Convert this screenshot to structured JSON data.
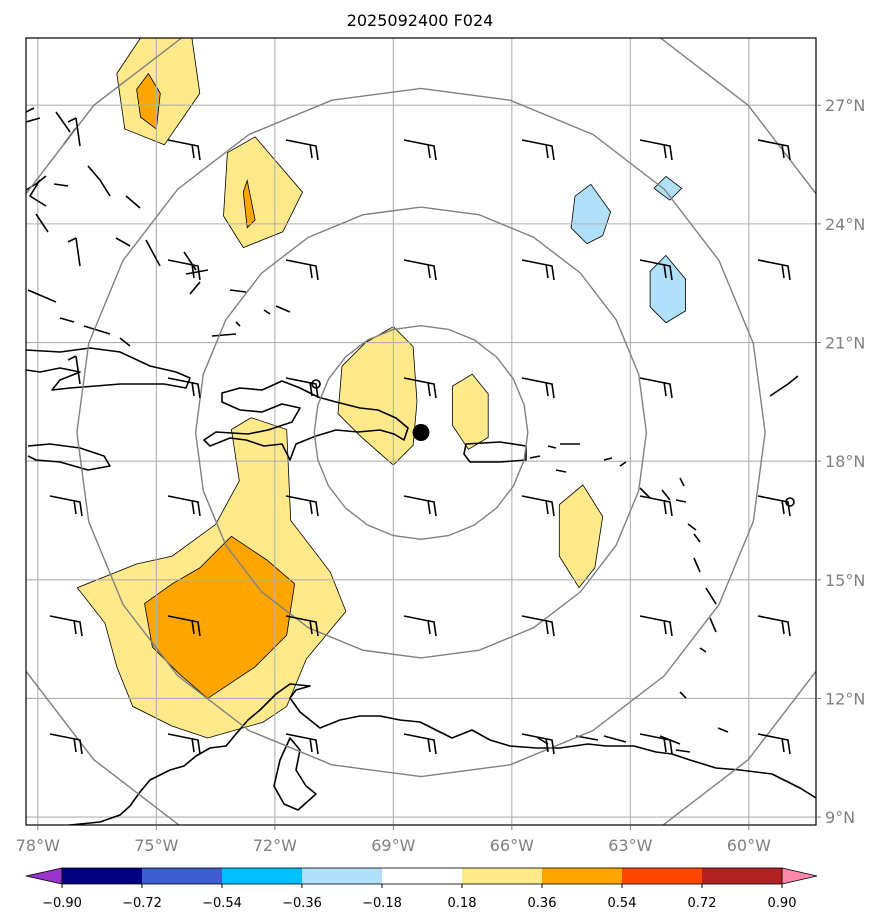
{
  "title": "2025092400 F024",
  "map": {
    "lon_range": [
      -78.3,
      -58.3
    ],
    "lat_range": [
      8.8,
      28.7
    ],
    "lon_ticks": [
      {
        "value": -78,
        "label": "78°W"
      },
      {
        "value": -75,
        "label": "75°W"
      },
      {
        "value": -72,
        "label": "72°W"
      },
      {
        "value": -69,
        "label": "69°W"
      },
      {
        "value": -66,
        "label": "66°W"
      },
      {
        "value": -63,
        "label": "63°W"
      },
      {
        "value": -60,
        "label": "60°W"
      }
    ],
    "lat_ticks": [
      {
        "value": 9,
        "label": "9°N"
      },
      {
        "value": 12,
        "label": "12°N"
      },
      {
        "value": 15,
        "label": "15°N"
      },
      {
        "value": 18,
        "label": "18°N"
      },
      {
        "value": 21,
        "label": "21°N"
      },
      {
        "value": 24,
        "label": "24°N"
      },
      {
        "value": 27,
        "label": "27°N"
      }
    ],
    "center_marker": {
      "lon": -68.3,
      "lat": 18.75
    },
    "range_rings_deg_lat": [
      2.7,
      5.7,
      8.7,
      11.7
    ]
  },
  "colorbar": {
    "colors": [
      "#9933cc",
      "#000080",
      "#3c5ed2",
      "#00bfff",
      "#b0e0fa",
      "#ffffff",
      "#ffe98a",
      "#ffa500",
      "#ff4500",
      "#b22222",
      "#ff88aa"
    ],
    "labels": [
      "−0.90",
      "−0.72",
      "−0.54",
      "−0.36",
      "−0.18",
      "0.18",
      "0.36",
      "0.54",
      "0.72",
      "0.90"
    ]
  },
  "chart_data": {
    "type": "heatmap",
    "title": "2025092400 F024",
    "levels": [
      -0.9,
      -0.72,
      -0.54,
      -0.36,
      -0.18,
      0.18,
      0.36,
      0.54,
      0.72,
      0.9
    ],
    "regions": [
      {
        "level": 0.18,
        "points": [
          [
            -75.4,
            28.7
          ],
          [
            -74.1,
            28.7
          ],
          [
            -73.9,
            27.3
          ],
          [
            -74.8,
            26.0
          ],
          [
            -75.8,
            26.4
          ],
          [
            -76.0,
            27.8
          ]
        ]
      },
      {
        "level": 0.36,
        "points": [
          [
            -75.2,
            27.8
          ],
          [
            -74.9,
            27.3
          ],
          [
            -75.0,
            26.4
          ],
          [
            -75.4,
            26.7
          ],
          [
            -75.5,
            27.4
          ]
        ]
      },
      {
        "level": 0.18,
        "points": [
          [
            -72.5,
            26.2
          ],
          [
            -71.3,
            24.8
          ],
          [
            -71.8,
            23.8
          ],
          [
            -72.8,
            23.4
          ],
          [
            -73.3,
            24.2
          ],
          [
            -73.2,
            25.8
          ]
        ]
      },
      {
        "level": 0.36,
        "points": [
          [
            -72.7,
            25.1
          ],
          [
            -72.5,
            24.1
          ],
          [
            -72.7,
            23.9
          ],
          [
            -72.8,
            24.8
          ]
        ]
      },
      {
        "level": 0.18,
        "points": [
          [
            -69.0,
            21.4
          ],
          [
            -68.5,
            20.9
          ],
          [
            -68.4,
            19.5
          ],
          [
            -68.5,
            18.4
          ],
          [
            -69.0,
            17.9
          ],
          [
            -69.8,
            18.6
          ],
          [
            -70.4,
            19.2
          ],
          [
            -70.3,
            20.4
          ],
          [
            -69.7,
            21.0
          ]
        ]
      },
      {
        "level": 0.18,
        "points": [
          [
            -67.0,
            20.2
          ],
          [
            -66.6,
            19.7
          ],
          [
            -66.6,
            18.6
          ],
          [
            -67.1,
            18.3
          ],
          [
            -67.5,
            18.9
          ],
          [
            -67.5,
            19.9
          ]
        ]
      },
      {
        "level": 0.18,
        "points": [
          [
            -64.2,
            17.4
          ],
          [
            -63.7,
            16.6
          ],
          [
            -63.9,
            15.3
          ],
          [
            -64.3,
            14.8
          ],
          [
            -64.8,
            15.6
          ],
          [
            -64.8,
            16.9
          ]
        ]
      },
      {
        "level": 0.18,
        "points": [
          [
            -72.6,
            19.1
          ],
          [
            -71.7,
            18.8
          ],
          [
            -71.6,
            16.5
          ],
          [
            -70.6,
            15.2
          ],
          [
            -70.2,
            14.2
          ],
          [
            -71.2,
            13.0
          ],
          [
            -71.7,
            11.8
          ],
          [
            -72.3,
            11.4
          ],
          [
            -73.7,
            11.0
          ],
          [
            -74.6,
            11.3
          ],
          [
            -75.6,
            11.8
          ],
          [
            -76.0,
            12.8
          ],
          [
            -76.3,
            13.9
          ],
          [
            -77.0,
            14.8
          ],
          [
            -75.5,
            15.4
          ],
          [
            -74.6,
            15.6
          ],
          [
            -73.5,
            16.4
          ],
          [
            -72.9,
            17.5
          ],
          [
            -73.1,
            18.8
          ]
        ]
      },
      {
        "level": 0.36,
        "points": [
          [
            -73.1,
            16.1
          ],
          [
            -72.2,
            15.5
          ],
          [
            -71.5,
            14.9
          ],
          [
            -71.7,
            13.6
          ],
          [
            -72.5,
            12.8
          ],
          [
            -73.7,
            12.0
          ],
          [
            -74.4,
            12.6
          ],
          [
            -75.1,
            13.3
          ],
          [
            -75.3,
            14.4
          ],
          [
            -74.6,
            14.9
          ],
          [
            -73.9,
            15.3
          ]
        ]
      },
      {
        "level": -0.18,
        "points": [
          [
            -64.0,
            25.0
          ],
          [
            -63.5,
            24.3
          ],
          [
            -63.7,
            23.7
          ],
          [
            -64.1,
            23.5
          ],
          [
            -64.5,
            23.9
          ],
          [
            -64.4,
            24.7
          ]
        ]
      },
      {
        "level": -0.18,
        "points": [
          [
            -62.1,
            25.2
          ],
          [
            -61.7,
            24.9
          ],
          [
            -62.0,
            24.6
          ],
          [
            -62.4,
            24.9
          ]
        ]
      },
      {
        "level": -0.18,
        "points": [
          [
            -62.1,
            23.2
          ],
          [
            -61.6,
            22.6
          ],
          [
            -61.6,
            21.8
          ],
          [
            -62.1,
            21.5
          ],
          [
            -62.5,
            21.9
          ],
          [
            -62.5,
            22.8
          ]
        ]
      }
    ]
  }
}
